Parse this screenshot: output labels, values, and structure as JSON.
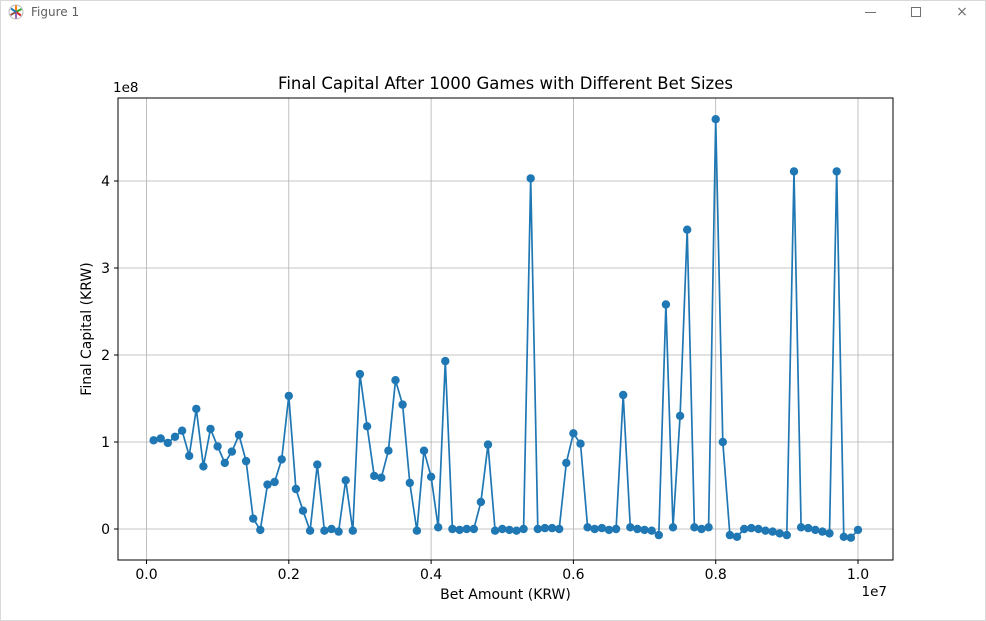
{
  "window": {
    "title": "Figure 1",
    "controls": {
      "minimize": "minimize",
      "maximize": "maximize",
      "close": "×"
    }
  },
  "chart": {
    "title": "Final Capital After 1000 Games with Different Bet Sizes",
    "xlabel": "Bet Amount (KRW)",
    "ylabel": "Final Capital (KRW)",
    "x_offset_label": "1e7",
    "y_offset_label": "1e8",
    "x_tick_labels": [
      "0.0",
      "0.2",
      "0.4",
      "0.6",
      "0.8",
      "1.0"
    ],
    "y_tick_labels": [
      "0",
      "1",
      "2",
      "3",
      "4"
    ],
    "line_color": "#1f77b4",
    "grid_color": "#b0b0b0",
    "spine_color": "#000000"
  },
  "chart_data": {
    "type": "line",
    "title": "Final Capital After 1000 Games with Different Bet Sizes",
    "xlabel": "Bet Amount (KRW)",
    "ylabel": "Final Capital (KRW)",
    "marker": "o",
    "grid": true,
    "legend": false,
    "x_tick_values": [
      0,
      2000000,
      4000000,
      6000000,
      8000000,
      10000000
    ],
    "y_tick_values": [
      0,
      100000000,
      200000000,
      300000000,
      400000000
    ],
    "xlim": [
      -395000,
      10495000
    ],
    "ylim": [
      -34500000,
      495000000
    ],
    "x": [
      100000,
      200000,
      300000,
      400000,
      500000,
      600000,
      700000,
      800000,
      900000,
      1000000,
      1100000,
      1200000,
      1300000,
      1400000,
      1500000,
      1600000,
      1700000,
      1800000,
      1900000,
      2000000,
      2100000,
      2200000,
      2300000,
      2400000,
      2500000,
      2600000,
      2700000,
      2800000,
      2900000,
      3000000,
      3100000,
      3200000,
      3300000,
      3400000,
      3500000,
      3600000,
      3700000,
      3800000,
      3900000,
      4000000,
      4100000,
      4200000,
      4300000,
      4400000,
      4500000,
      4600000,
      4700000,
      4800000,
      4900000,
      5000000,
      5100000,
      5200000,
      5300000,
      5400000,
      5500000,
      5600000,
      5700000,
      5800000,
      5900000,
      6000000,
      6100000,
      6200000,
      6300000,
      6400000,
      6500000,
      6600000,
      6700000,
      6800000,
      6900000,
      7000000,
      7100000,
      7200000,
      7300000,
      7400000,
      7500000,
      7600000,
      7700000,
      7800000,
      7900000,
      8000000,
      8100000,
      8200000,
      8300000,
      8400000,
      8500000,
      8600000,
      8700000,
      8800000,
      8900000,
      9000000,
      9100000,
      9200000,
      9300000,
      9400000,
      9500000,
      9600000,
      9700000,
      9800000,
      9900000,
      10000000
    ],
    "series": [
      {
        "name": "final_capital",
        "color": "#1f77b4",
        "values": [
          102000000,
          104000000,
          99000000,
          106000000,
          113000000,
          84000000,
          138000000,
          72000000,
          115000000,
          95000000,
          76000000,
          89000000,
          108000000,
          78000000,
          12000000,
          -1000000,
          51000000,
          54000000,
          80000000,
          153000000,
          46000000,
          21000000,
          -2000000,
          74000000,
          -2000000,
          0,
          -3000000,
          56000000,
          -2000000,
          178000000,
          118000000,
          61000000,
          59000000,
          90000000,
          171000000,
          143000000,
          53000000,
          -2000000,
          90000000,
          60000000,
          2000000,
          193000000,
          0,
          -1000000,
          0,
          0,
          31000000,
          97000000,
          -2000000,
          0,
          -1000000,
          -2000000,
          0,
          403000000,
          0,
          1000000,
          1000000,
          0,
          76000000,
          110000000,
          98000000,
          2000000,
          0,
          1000000,
          -1000000,
          0,
          154000000,
          2000000,
          0,
          -1000000,
          -2000000,
          -7000000,
          258000000,
          2000000,
          130000000,
          344000000,
          2000000,
          0,
          2000000,
          471000000,
          100000000,
          -7000000,
          -9000000,
          0,
          1000000,
          0,
          -2000000,
          -3000000,
          -5000000,
          -7000000,
          411000000,
          2000000,
          1000000,
          -1000000,
          -3000000,
          -5000000,
          411000000,
          -9000000,
          -10000000,
          -1000000
        ]
      }
    ]
  }
}
